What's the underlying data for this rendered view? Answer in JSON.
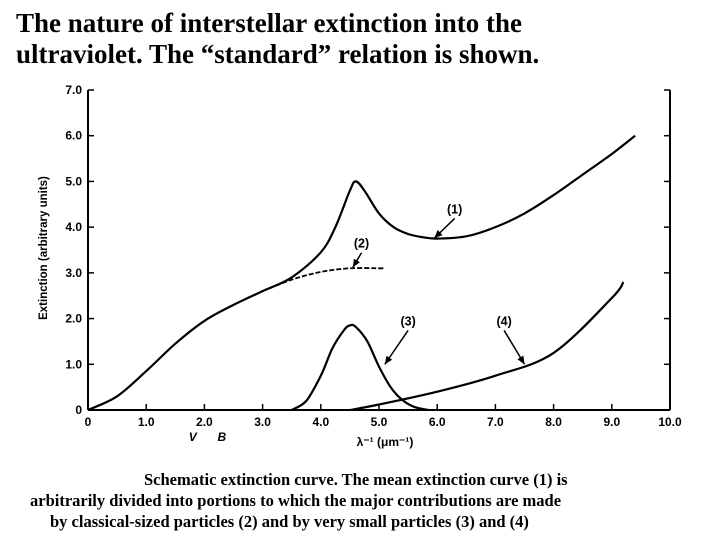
{
  "slide": {
    "title_line1": "The nature of interstellar extinction into the",
    "title_line2": "ultraviolet. The “standard” relation is shown.",
    "caption_line1": "Schematic extinction curve. The mean extinction curve (1) is",
    "caption_line2": "arbitrarily divided into portions to which the major contributions are made",
    "caption_line3": "by classical-sized particles (2) and by very small particles (3) and (4)"
  },
  "chart_data": {
    "type": "line",
    "title": "",
    "xlabel": "λ⁻¹ (μm⁻¹)",
    "ylabel": "Extinction (arbitrary units)",
    "xlim": [
      0,
      10
    ],
    "ylim": [
      0,
      7
    ],
    "x_ticks": [
      "0",
      "1.0",
      "2.0",
      "3.0",
      "4.0",
      "5.0",
      "6.0",
      "7.0",
      "8.0",
      "9.0",
      "10.0"
    ],
    "y_ticks": [
      "0",
      "1.0",
      "2.0",
      "3.0",
      "4.0",
      "5.0",
      "6.0",
      "7.0"
    ],
    "band_labels": [
      {
        "text": "V",
        "x": 1.8
      },
      {
        "text": "B",
        "x": 2.3
      }
    ],
    "series": [
      {
        "name": "(1)",
        "label": "(1)",
        "style": "solid",
        "x": [
          0,
          0.5,
          1.0,
          1.5,
          2.0,
          2.5,
          3.0,
          3.5,
          4.0,
          4.25,
          4.5,
          4.6,
          4.75,
          5.0,
          5.25,
          5.5,
          5.75,
          6.0,
          6.5,
          7.0,
          7.5,
          8.0,
          8.5,
          9.0,
          9.4
        ],
        "y": [
          0,
          0.3,
          0.85,
          1.45,
          1.95,
          2.3,
          2.6,
          2.9,
          3.45,
          4.0,
          4.8,
          5.0,
          4.8,
          4.3,
          4.0,
          3.85,
          3.78,
          3.75,
          3.8,
          4.0,
          4.3,
          4.7,
          5.15,
          5.6,
          6.0
        ]
      },
      {
        "name": "(2)",
        "label": "(2)",
        "style": "dashed",
        "x": [
          3.0,
          3.5,
          4.0,
          4.5,
          5.0,
          5.1
        ],
        "y": [
          2.6,
          2.85,
          3.02,
          3.1,
          3.1,
          3.1
        ]
      },
      {
        "name": "(3)",
        "label": "(3)",
        "style": "solid",
        "x": [
          3.5,
          3.75,
          4.0,
          4.2,
          4.4,
          4.5,
          4.6,
          4.8,
          5.0,
          5.2,
          5.4,
          5.6,
          5.85
        ],
        "y": [
          0,
          0.2,
          0.75,
          1.35,
          1.75,
          1.85,
          1.82,
          1.5,
          0.95,
          0.5,
          0.22,
          0.07,
          0
        ]
      },
      {
        "name": "(4)",
        "label": "(4)",
        "style": "solid",
        "x": [
          4.5,
          5.0,
          6.0,
          7.0,
          8.0,
          9.0,
          9.2
        ],
        "y": [
          0,
          0.12,
          0.4,
          0.75,
          1.25,
          2.45,
          2.8
        ]
      }
    ],
    "annotations": [
      {
        "text": "(1)",
        "label_at": [
          6.3,
          4.3
        ],
        "arrow_to": [
          5.95,
          3.76
        ]
      },
      {
        "text": "(2)",
        "label_at": [
          4.7,
          3.55
        ],
        "arrow_to": [
          4.55,
          3.12
        ]
      },
      {
        "text": "(3)",
        "label_at": [
          5.5,
          1.85
        ],
        "arrow_to": [
          5.1,
          1.0
        ]
      },
      {
        "text": "(4)",
        "label_at": [
          7.15,
          1.85
        ],
        "arrow_to": [
          7.5,
          1.0
        ]
      }
    ]
  }
}
